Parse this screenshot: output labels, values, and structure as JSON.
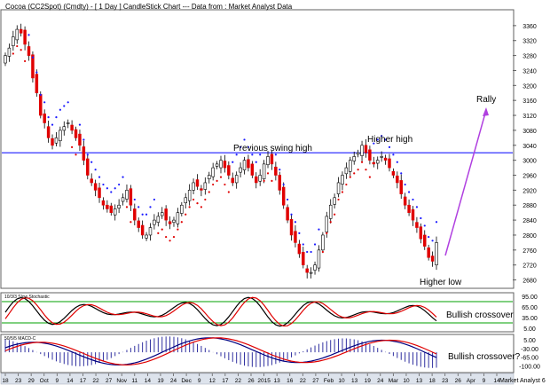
{
  "title": "Cocoa (CC2Spot) (Cmdty) - [ 1 Day ] CandleStick Chart --- Data from : Market Analyst Data",
  "footer": "Market Analyst 6",
  "chart_data": [
    {
      "type": "candlestick",
      "name": "price",
      "ylim": [
        2660,
        3400
      ],
      "y_ticks": [
        2680,
        2720,
        2760,
        2800,
        2840,
        2880,
        2920,
        2960,
        3000,
        3040,
        3080,
        3120,
        3160,
        3200,
        3240,
        3280,
        3320,
        3360
      ],
      "x_ticks": [
        "18",
        "23",
        "29",
        "Oct",
        "9",
        "14",
        "17",
        "22",
        "27",
        "Nov",
        "11",
        "14",
        "19",
        "24",
        "Dec",
        "9",
        "12",
        "17",
        "22",
        "26",
        "2015",
        "13",
        "16",
        "22",
        "27",
        "Feb",
        "10",
        "13",
        "19",
        "24",
        "Mar",
        "10",
        "13",
        "18",
        "23",
        "26",
        "Apr",
        "9",
        "14"
      ],
      "horizontal_line": {
        "value": 3020,
        "label": "Previous swing high"
      },
      "annotations": [
        {
          "text": "Previous swing high"
        },
        {
          "text": "Higher high"
        },
        {
          "text": "Higher low"
        },
        {
          "text": "Rally"
        }
      ],
      "closes": [
        3280,
        3300,
        3330,
        3350,
        3340,
        3310,
        3280,
        3220,
        3180,
        3120,
        3100,
        3060,
        3040,
        3060,
        3080,
        3090,
        3100,
        3080,
        3060,
        3040,
        3000,
        2960,
        2940,
        2920,
        2900,
        2880,
        2870,
        2860,
        2870,
        2880,
        2900,
        2920,
        2880,
        2840,
        2820,
        2800,
        2800,
        2820,
        2840,
        2850,
        2860,
        2840,
        2830,
        2840,
        2860,
        2880,
        2900,
        2920,
        2940,
        2930,
        2920,
        2940,
        2960,
        2980,
        2990,
        3000,
        2980,
        2960,
        2940,
        2960,
        2980,
        3000,
        2980,
        2960,
        2940,
        2960,
        2990,
        3010,
        2990,
        2960,
        2920,
        2880,
        2840,
        2800,
        2780,
        2750,
        2720,
        2700,
        2700,
        2720,
        2760,
        2800,
        2850,
        2880,
        2900,
        2940,
        2960,
        2980,
        3000,
        3010,
        3020,
        3040,
        3020,
        3000,
        2990,
        3000,
        3010,
        3000,
        2980,
        2960,
        2940,
        2910,
        2880,
        2860,
        2840,
        2820,
        2790,
        2770,
        2740,
        2730,
        2780
      ],
      "parabolic_sar": "dots above price in downtrends and below price in uptrends"
    },
    {
      "type": "line",
      "name": "10/3/3 Slow Stochastic",
      "ylim": [
        0,
        100
      ],
      "y_ticks": [
        95,
        65,
        35,
        5
      ],
      "levels": [
        80,
        20
      ],
      "annotation": "Bullish crossover",
      "series": [
        {
          "color": "#000000"
        },
        {
          "color": "#e00000"
        }
      ]
    },
    {
      "type": "line",
      "name": "50/5/5 MACD-C",
      "ylim": [
        -120,
        20
      ],
      "y_ticks": [
        5.0,
        -30.0,
        -65.0,
        -100.0
      ],
      "annotation": "Bullish crossover?",
      "series": [
        {
          "color": "#000080"
        },
        {
          "color": "#e00000"
        }
      ]
    }
  ],
  "colors": {
    "up": "#ffffff",
    "down": "#e00000",
    "sar": "#1a1aff",
    "resistance": "#3333ff",
    "rally_arrow": "#b040e0",
    "stoch_level": "#00a000"
  }
}
